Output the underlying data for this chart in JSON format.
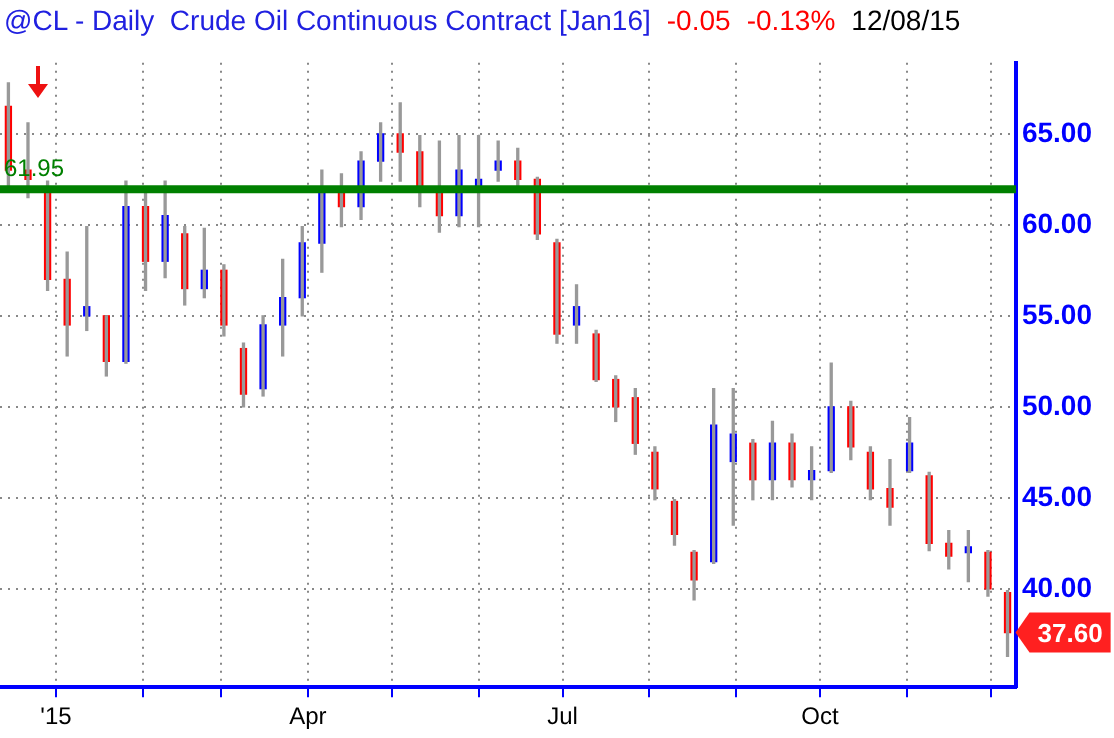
{
  "chart_data": {
    "type": "candlestick",
    "title": "@CL - Daily  Crude Oil Continuous Contract [Jan16]",
    "annotations": [
      "-0.05",
      "-0.13%",
      "12/08/15",
      {
        "text": "37.60",
        "x": "2015-12-07",
        "y": 37.6
      }
    ],
    "x": [
      "2014-12-15",
      "2014-12-22",
      "2014-12-29",
      "2015-01-05",
      "2015-01-12",
      "2015-01-19",
      "2015-01-26",
      "2015-02-02",
      "2015-02-09",
      "2015-02-16",
      "2015-02-23",
      "2015-03-02",
      "2015-03-09",
      "2015-03-16",
      "2015-03-23",
      "2015-03-30",
      "2015-04-06",
      "2015-04-13",
      "2015-04-20",
      "2015-04-27",
      "2015-05-04",
      "2015-05-11",
      "2015-05-18",
      "2015-05-25",
      "2015-06-01",
      "2015-06-08",
      "2015-06-15",
      "2015-06-22",
      "2015-06-29",
      "2015-07-06",
      "2015-07-13",
      "2015-07-20",
      "2015-07-27",
      "2015-08-03",
      "2015-08-10",
      "2015-08-17",
      "2015-08-24",
      "2015-08-31",
      "2015-09-07",
      "2015-09-14",
      "2015-09-21",
      "2015-09-28",
      "2015-10-05",
      "2015-10-12",
      "2015-10-19",
      "2015-10-26",
      "2015-11-02",
      "2015-11-09",
      "2015-11-16",
      "2015-11-23",
      "2015-11-30",
      "2015-12-07"
    ],
    "ohlc": [
      [
        66.5,
        67.8,
        62.0,
        63.0
      ],
      [
        63.0,
        65.6,
        61.5,
        62.5
      ],
      [
        62.0,
        62.4,
        56.4,
        57.0
      ],
      [
        57.0,
        58.5,
        52.8,
        54.5
      ],
      [
        55.0,
        59.9,
        54.2,
        55.5
      ],
      [
        55.0,
        55.0,
        51.7,
        52.5
      ],
      [
        52.5,
        62.4,
        52.4,
        61.0
      ],
      [
        61.0,
        62.1,
        56.4,
        58.0
      ],
      [
        58.0,
        62.4,
        57.1,
        60.5
      ],
      [
        59.5,
        59.9,
        55.6,
        56.5
      ],
      [
        56.5,
        59.8,
        56.0,
        57.5
      ],
      [
        57.5,
        57.8,
        53.9,
        54.5
      ],
      [
        53.2,
        53.5,
        50.0,
        50.7
      ],
      [
        51.0,
        55.0,
        50.6,
        54.5
      ],
      [
        54.5,
        58.1,
        52.8,
        56.0
      ],
      [
        56.0,
        59.9,
        55.0,
        59.0
      ],
      [
        59.0,
        63.0,
        57.4,
        62.0
      ],
      [
        62.0,
        62.8,
        59.9,
        61.0
      ],
      [
        61.0,
        64.0,
        60.3,
        63.5
      ],
      [
        63.5,
        65.6,
        62.4,
        65.0
      ],
      [
        65.0,
        66.7,
        62.4,
        64.0
      ],
      [
        64.0,
        64.9,
        61.0,
        61.8
      ],
      [
        62.0,
        64.6,
        59.6,
        60.5
      ],
      [
        60.5,
        64.9,
        59.9,
        63.0
      ],
      [
        62.0,
        64.9,
        59.9,
        62.5
      ],
      [
        63.0,
        64.6,
        62.4,
        63.5
      ],
      [
        63.5,
        64.2,
        62.1,
        62.5
      ],
      [
        62.5,
        62.6,
        59.2,
        59.5
      ],
      [
        59.0,
        59.2,
        53.5,
        54.0
      ],
      [
        54.5,
        56.7,
        53.5,
        55.5
      ],
      [
        54.0,
        54.2,
        51.4,
        51.5
      ],
      [
        51.5,
        51.7,
        49.2,
        50.0
      ],
      [
        50.5,
        51.0,
        47.4,
        48.0
      ],
      [
        47.5,
        47.8,
        44.9,
        45.5
      ],
      [
        44.8,
        44.9,
        42.4,
        43.0
      ],
      [
        42.0,
        42.1,
        39.4,
        40.5
      ],
      [
        41.5,
        51.0,
        41.4,
        49.0
      ],
      [
        47.0,
        51.0,
        43.5,
        48.5
      ],
      [
        48.0,
        48.2,
        44.9,
        46.0
      ],
      [
        46.0,
        49.2,
        44.9,
        48.0
      ],
      [
        48.0,
        48.5,
        45.6,
        46.0
      ],
      [
        46.0,
        47.8,
        44.9,
        46.5
      ],
      [
        46.5,
        52.4,
        46.4,
        50.0
      ],
      [
        50.0,
        50.3,
        47.1,
        47.8
      ],
      [
        47.5,
        47.8,
        44.9,
        45.5
      ],
      [
        45.5,
        47.1,
        43.5,
        44.5
      ],
      [
        46.5,
        49.4,
        46.4,
        48.0
      ],
      [
        46.2,
        46.4,
        42.1,
        42.5
      ],
      [
        42.5,
        43.2,
        41.1,
        41.8
      ],
      [
        42.0,
        43.2,
        40.4,
        42.3
      ],
      [
        42.0,
        42.1,
        39.6,
        40.0
      ],
      [
        39.8,
        39.9,
        36.3,
        37.6
      ]
    ],
    "colors": [
      "#ff0000",
      "#ff0000",
      "#ff0000",
      "#ff0000",
      "#0000ff",
      "#ff0000",
      "#0000ff",
      "#ff0000",
      "#0000ff",
      "#ff0000",
      "#0000ff",
      "#ff0000",
      "#ff0000",
      "#0000ff",
      "#0000ff",
      "#0000ff",
      "#0000ff",
      "#ff0000",
      "#0000ff",
      "#0000ff",
      "#ff0000",
      "#ff0000",
      "#ff0000",
      "#0000ff",
      "#0000ff",
      "#0000ff",
      "#ff0000",
      "#ff0000",
      "#ff0000",
      "#0000ff",
      "#ff0000",
      "#ff0000",
      "#ff0000",
      "#ff0000",
      "#ff0000",
      "#ff0000",
      "#0000ff",
      "#0000ff",
      "#ff0000",
      "#0000ff",
      "#ff0000",
      "#0000ff",
      "#0000ff",
      "#ff0000",
      "#ff0000",
      "#ff0000",
      "#0000ff",
      "#ff0000",
      "#ff0000",
      "#0000ff",
      "#ff0000",
      "#ff0000"
    ],
    "xlim": [
      "2014-12-12",
      "2015-12-10"
    ],
    "xticks": [
      {
        "value": "2015-01-01",
        "label": "'15"
      },
      {
        "value": "2015-02-01",
        "label": null
      },
      {
        "value": "2015-03-01",
        "label": null
      },
      {
        "value": "2015-04-01",
        "label": "Apr"
      },
      {
        "value": "2015-05-01",
        "label": null
      },
      {
        "value": "2015-06-01",
        "label": null
      },
      {
        "value": "2015-07-01",
        "label": "Jul"
      },
      {
        "value": "2015-08-01",
        "label": null
      },
      {
        "value": "2015-09-01",
        "label": null
      },
      {
        "value": "2015-10-01",
        "label": "Oct"
      },
      {
        "value": "2015-11-01",
        "label": null
      },
      {
        "value": "2015-12-01",
        "label": null
      }
    ],
    "ylim": [
      34.6,
      68.9
    ],
    "yticks": [
      {
        "value": 40,
        "label": "40.00"
      },
      {
        "value": 45,
        "label": "45.00"
      },
      {
        "value": 50,
        "label": "50.00"
      },
      {
        "value": 55,
        "label": "55.00"
      },
      {
        "value": 60,
        "label": "60.00"
      },
      {
        "value": 65,
        "label": "65.00"
      }
    ],
    "ref_lines": [
      {
        "axis": "y",
        "value": 61.95,
        "label": "61.95",
        "color": "#008000"
      }
    ],
    "grid": true,
    "legend": false
  }
}
